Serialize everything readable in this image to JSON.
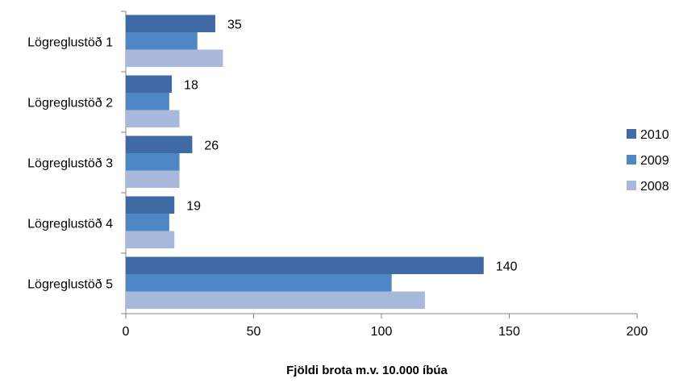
{
  "chart_data": {
    "type": "bar",
    "orientation": "horizontal",
    "xlabel": "Fjöldi brota m.v. 10.000 íbúa",
    "xlim": [
      0,
      200
    ],
    "xticks": [
      0,
      50,
      100,
      150,
      200
    ],
    "grid": false,
    "legend_position": "right",
    "categories": [
      "Lögreglustöð 1",
      "Lögreglustöð 2",
      "Lögreglustöð 3",
      "Lögreglustöð 4",
      "Lögreglustöð 5"
    ],
    "series": [
      {
        "name": "2010",
        "color": "#3f6aa6",
        "values": [
          35,
          18,
          26,
          19,
          140
        ],
        "show_data_labels": true
      },
      {
        "name": "2009",
        "color": "#4f86c6",
        "values": [
          28,
          17,
          21,
          17,
          104
        ],
        "show_data_labels": false
      },
      {
        "name": "2008",
        "color": "#a9b9dc",
        "values": [
          38,
          21,
          21,
          19,
          117
        ],
        "show_data_labels": false
      }
    ],
    "data_labels": [
      "35",
      "18",
      "26",
      "19",
      "140"
    ]
  }
}
